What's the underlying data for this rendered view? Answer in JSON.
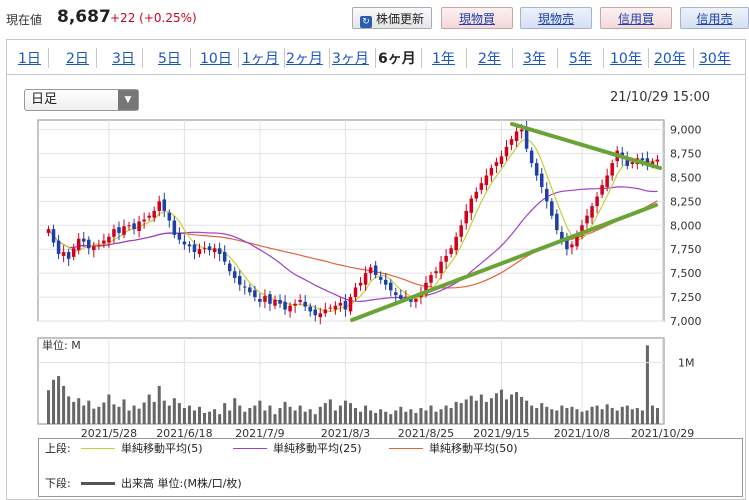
{
  "header": {
    "label": "現在値",
    "price": "8,687",
    "change": "+22 (+0.25%)",
    "update_button": "株価更新",
    "update_icon": "refresh-icon",
    "buttons": [
      "現物買",
      "現物売",
      "信用買",
      "信用売"
    ]
  },
  "tabs": [
    "1日",
    "2日",
    "3日",
    "5日",
    "10日",
    "1ヶ月",
    "2ヶ月",
    "3ヶ月",
    "6ヶ月",
    "1年",
    "2年",
    "3年",
    "5年",
    "10年",
    "20年",
    "30年"
  ],
  "active_tab": "6ヶ月",
  "period_select": {
    "value": "日足"
  },
  "timestamp": "21/10/29 15:00",
  "chart_data": [
    {
      "type": "candlestick",
      "title": "",
      "ylim": [
        7000,
        9100
      ],
      "ytick_labels": [
        "9,000",
        "8,750",
        "8,500",
        "8,250",
        "8,000",
        "7,750",
        "7,500",
        "7,250",
        "7,000"
      ],
      "yticks": [
        9000,
        8750,
        8500,
        8250,
        8000,
        7750,
        7500,
        7250,
        7000
      ],
      "xtick_labels": [
        "2021/5/28",
        "2021/6/18",
        "2021/7/9",
        "2021/8/3",
        "2021/8/25",
        "2021/9/15",
        "2021/10/8",
        "2021/10/29"
      ],
      "xtick_index": [
        12,
        27,
        42,
        59,
        75,
        90,
        106,
        122
      ],
      "close": [
        7960,
        7820,
        7700,
        7720,
        7650,
        7760,
        7860,
        7830,
        7760,
        7780,
        7790,
        7840,
        7880,
        7960,
        7920,
        7990,
        8000,
        7960,
        8040,
        8060,
        8100,
        8150,
        8250,
        8150,
        8050,
        7900,
        7850,
        7800,
        7780,
        7720,
        7750,
        7760,
        7740,
        7760,
        7700,
        7620,
        7520,
        7450,
        7380,
        7350,
        7300,
        7250,
        7200,
        7260,
        7180,
        7220,
        7180,
        7120,
        7160,
        7180,
        7220,
        7150,
        7100,
        7060,
        7080,
        7120,
        7140,
        7160,
        7190,
        7120,
        7250,
        7350,
        7400,
        7500,
        7560,
        7480,
        7430,
        7380,
        7320,
        7270,
        7230,
        7250,
        7200,
        7230,
        7300,
        7400,
        7480,
        7520,
        7620,
        7680,
        7760,
        7880,
        8000,
        8150,
        8280,
        8350,
        8440,
        8520,
        8600,
        8660,
        8720,
        8820,
        8900,
        8980,
        9000,
        8800,
        8650,
        8520,
        8400,
        8250,
        8100,
        7950,
        7850,
        7750,
        7800,
        7900,
        8000,
        8100,
        8200,
        8300,
        8420,
        8520,
        8650,
        8780,
        8700,
        8620,
        8660,
        8700,
        8680,
        8650,
        8665,
        8687
      ],
      "volume": [
        0.55,
        0.72,
        0.78,
        0.62,
        0.45,
        0.36,
        0.42,
        0.3,
        0.38,
        0.25,
        0.28,
        0.35,
        0.48,
        0.32,
        0.28,
        0.4,
        0.22,
        0.3,
        0.25,
        0.35,
        0.48,
        0.36,
        0.62,
        0.38,
        0.3,
        0.42,
        0.34,
        0.26,
        0.3,
        0.22,
        0.28,
        0.18,
        0.2,
        0.24,
        0.16,
        0.34,
        0.22,
        0.42,
        0.3,
        0.2,
        0.26,
        0.3,
        0.38,
        0.22,
        0.3,
        0.16,
        0.26,
        0.36,
        0.28,
        0.22,
        0.3,
        0.2,
        0.24,
        0.16,
        0.28,
        0.34,
        0.4,
        0.22,
        0.3,
        0.38,
        0.34,
        0.26,
        0.2,
        0.3,
        0.22,
        0.18,
        0.24,
        0.2,
        0.16,
        0.22,
        0.28,
        0.2,
        0.24,
        0.18,
        0.26,
        0.22,
        0.3,
        0.2,
        0.24,
        0.3,
        0.26,
        0.36,
        0.34,
        0.4,
        0.46,
        0.38,
        0.48,
        0.36,
        0.42,
        0.5,
        0.56,
        0.4,
        0.48,
        0.52,
        0.44,
        0.38,
        0.3,
        0.26,
        0.34,
        0.28,
        0.24,
        0.22,
        0.3,
        0.26,
        0.28,
        0.24,
        0.2,
        0.22,
        0.28,
        0.3,
        0.24,
        0.32,
        0.26,
        0.22,
        0.28,
        0.3,
        0.24,
        0.26,
        0.22,
        1.28,
        0.3,
        0.26
      ],
      "volume_label": "1M",
      "panel_label": "単位: M"
    }
  ],
  "legend": {
    "upper_label": "上段:",
    "lower_label": "下段:",
    "items": [
      {
        "text": "単純移動平均(5)",
        "color": "#c7cf3c"
      },
      {
        "text": "単純移動平均(25)",
        "color": "#9b3fd0"
      },
      {
        "text": "単純移動平均(50)",
        "color": "#e2633a"
      }
    ],
    "volume_text": "出来高 単位:(M株/口/枚)",
    "volume_color": "#555555"
  },
  "colors": {
    "up": "#d0021b",
    "down": "#1f3fa8",
    "trend": "#6aa437",
    "volume": "#666666"
  }
}
